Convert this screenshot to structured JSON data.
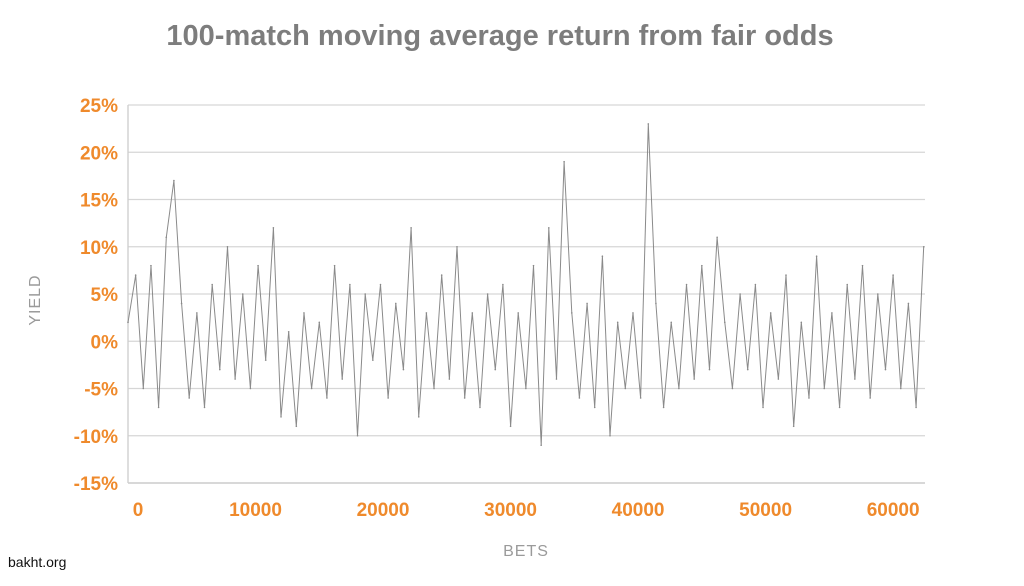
{
  "chart_data": {
    "type": "line",
    "title": "100-match moving average return from fair odds",
    "xlabel": "BETS",
    "ylabel": "YIELD",
    "xlim": [
      0,
      62500
    ],
    "ylim": [
      -15,
      25
    ],
    "y_unit": "%",
    "x_ticks": [
      0,
      10000,
      20000,
      30000,
      40000,
      50000,
      60000
    ],
    "x_tick_labels": [
      "0",
      "10000",
      "20000",
      "30000",
      "40000",
      "50000",
      "60000"
    ],
    "y_ticks": [
      25,
      20,
      15,
      10,
      5,
      0,
      -5,
      -10,
      -15
    ],
    "y_tick_labels": [
      "25%",
      "20%",
      "15%",
      "10%",
      "5%",
      "0%",
      "-5%",
      "-10%",
      "-15%"
    ],
    "grid": "horizontal",
    "legend": "none",
    "series": [
      {
        "color": "#8a8a8a",
        "x": [
          0,
          600,
          1200,
          1800,
          2400,
          3000,
          3600,
          4200,
          4800,
          5400,
          6000,
          6600,
          7200,
          7800,
          8400,
          9000,
          9600,
          10200,
          10800,
          11400,
          12000,
          12600,
          13200,
          13800,
          14400,
          15000,
          15600,
          16200,
          16800,
          17400,
          18000,
          18600,
          19200,
          19800,
          20400,
          21000,
          21600,
          22200,
          22800,
          23400,
          24000,
          24600,
          25200,
          25800,
          26400,
          27000,
          27600,
          28200,
          28800,
          29400,
          30000,
          30600,
          31200,
          31800,
          32400,
          33000,
          33600,
          34200,
          34800,
          35400,
          36000,
          36600,
          37200,
          37800,
          38400,
          39000,
          39600,
          40200,
          40800,
          41400,
          42000,
          42600,
          43200,
          43800,
          44400,
          45000,
          45600,
          46200,
          46800,
          47400,
          48000,
          48600,
          49200,
          49800,
          50400,
          51000,
          51600,
          52200,
          52800,
          53400,
          54000,
          54600,
          55200,
          55800,
          56400,
          57000,
          57600,
          58200,
          58800,
          59400,
          60000,
          60600,
          61200,
          61800,
          62400
        ],
        "y": [
          2,
          7,
          -5,
          8,
          -7,
          11,
          17,
          4,
          -6,
          3,
          -7,
          6,
          -3,
          10,
          -4,
          5,
          -5,
          8,
          -2,
          12,
          -8,
          1,
          -9,
          3,
          -5,
          2,
          -6,
          8,
          -4,
          6,
          -10,
          5,
          -2,
          6,
          -6,
          4,
          -3,
          12,
          -8,
          3,
          -5,
          7,
          -4,
          10,
          -6,
          3,
          -7,
          5,
          -3,
          6,
          -9,
          3,
          -5,
          8,
          -11,
          12,
          -4,
          19,
          3,
          -6,
          4,
          -7,
          9,
          -10,
          2,
          -5,
          3,
          -6,
          23,
          4,
          -7,
          2,
          -5,
          6,
          -4,
          8,
          -3,
          11,
          2,
          -5,
          5,
          -3,
          6,
          -7,
          3,
          -4,
          7,
          -9,
          2,
          -6,
          9,
          -5,
          3,
          -7,
          6,
          -4,
          8,
          -6,
          5,
          -3,
          7,
          -5,
          4,
          -7,
          10
        ]
      }
    ]
  },
  "credit": "bakht.org"
}
